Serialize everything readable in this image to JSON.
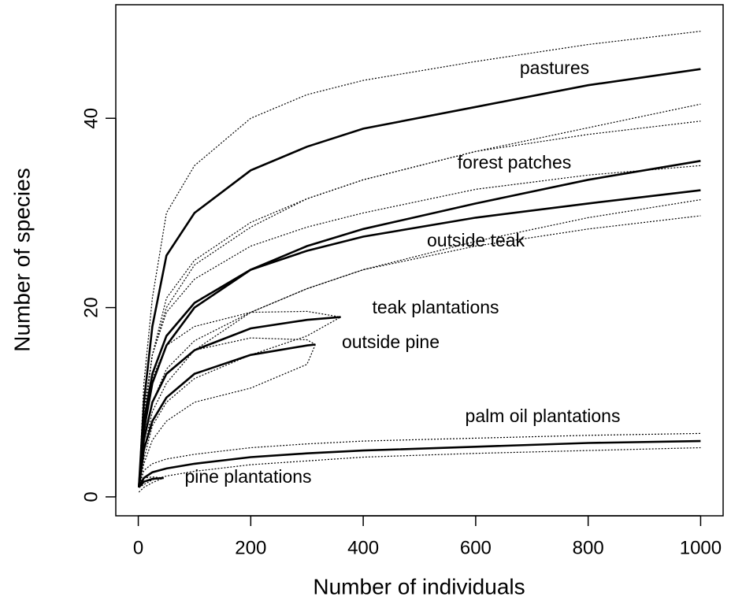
{
  "chart_data": {
    "type": "line",
    "xlabel": "Number of individuals",
    "ylabel": "Number of species",
    "xlim": [
      -40,
      1040
    ],
    "ylim": [
      -2,
      52
    ],
    "xticks": [
      0,
      200,
      400,
      600,
      800,
      1000
    ],
    "yticks": [
      0,
      20,
      40
    ],
    "grid": false,
    "series": [
      {
        "name": "pastures",
        "color": "#000000",
        "x": [
          1,
          10,
          25,
          50,
          100,
          200,
          300,
          400,
          600,
          800,
          1000
        ],
        "values": [
          1,
          10,
          18,
          25.5,
          30,
          34.5,
          37,
          38.9,
          41.2,
          43.5,
          45.2
        ],
        "upper": [
          1,
          12,
          21,
          30,
          35,
          40,
          42.5,
          44,
          46,
          47.8,
          49.2
        ],
        "lower": [
          1,
          8,
          15,
          21,
          25,
          29,
          31.5,
          33.5,
          36.5,
          39,
          41.5
        ]
      },
      {
        "name": "forest patches",
        "color": "#000000",
        "x": [
          1,
          10,
          25,
          50,
          100,
          200,
          300,
          400,
          600,
          800,
          1000
        ],
        "values": [
          1,
          7,
          12,
          16,
          20,
          24,
          26.5,
          28.3,
          31,
          33.5,
          35.5
        ],
        "upper": [
          1,
          9,
          15,
          20,
          24.5,
          28.5,
          31.5,
          33.5,
          36.5,
          38.3,
          39.7
        ],
        "lower": [
          1,
          5,
          9,
          12,
          15.5,
          19.5,
          22,
          24,
          27,
          29.5,
          31.4
        ]
      },
      {
        "name": "outside teak",
        "color": "#000000",
        "x": [
          1,
          10,
          25,
          50,
          100,
          200,
          300,
          400,
          600,
          800,
          1000
        ],
        "values": [
          1,
          8,
          13,
          17,
          20.5,
          24,
          26,
          27.5,
          29.5,
          31,
          32.4
        ],
        "upper": [
          1,
          9,
          15,
          19.5,
          23,
          26.5,
          28.5,
          30,
          32.5,
          34,
          35
        ],
        "lower": [
          1,
          6,
          10,
          13.5,
          16.5,
          19.5,
          22,
          24,
          26.5,
          28.3,
          29.7
        ]
      },
      {
        "name": "teak plantations",
        "color": "#000000",
        "x": [
          1,
          10,
          25,
          50,
          100,
          200,
          300,
          360
        ],
        "values": [
          1,
          6,
          10,
          13,
          15.5,
          17.8,
          18.7,
          19
        ],
        "upper": [
          1,
          8,
          12.5,
          16,
          18,
          19.5,
          19.6,
          19
        ],
        "lower": [
          1,
          4,
          7.5,
          10,
          12.5,
          15,
          17,
          19
        ]
      },
      {
        "name": "outside pine",
        "color": "#000000",
        "x": [
          1,
          10,
          25,
          50,
          100,
          200,
          300,
          315
        ],
        "values": [
          1,
          5,
          8,
          10.5,
          13,
          15,
          16,
          16.1
        ],
        "upper": [
          1,
          6.5,
          10,
          13,
          15.5,
          16.8,
          16.6,
          16.1
        ],
        "lower": [
          1,
          3.5,
          6,
          8,
          10,
          11.5,
          14,
          16.1
        ]
      },
      {
        "name": "palm oil plantations",
        "color": "#000000",
        "x": [
          1,
          10,
          25,
          50,
          100,
          200,
          300,
          400,
          600,
          800,
          1000
        ],
        "values": [
          1,
          2,
          2.6,
          3,
          3.5,
          4.2,
          4.6,
          4.9,
          5.3,
          5.7,
          5.9
        ],
        "upper": [
          1,
          2.8,
          3.5,
          4,
          4.5,
          5.2,
          5.6,
          5.9,
          6.2,
          6.5,
          6.7
        ],
        "lower": [
          1,
          1.3,
          1.8,
          2.2,
          2.7,
          3.4,
          3.8,
          4.2,
          4.6,
          4.9,
          5.2
        ]
      },
      {
        "name": "pine plantations",
        "color": "#000000",
        "x": [
          1,
          10,
          25,
          45
        ],
        "values": [
          1,
          1.6,
          1.9,
          2
        ],
        "upper": [
          1.5,
          2,
          2.1,
          2
        ],
        "lower": [
          0.5,
          1,
          1.5,
          2
        ]
      }
    ]
  }
}
